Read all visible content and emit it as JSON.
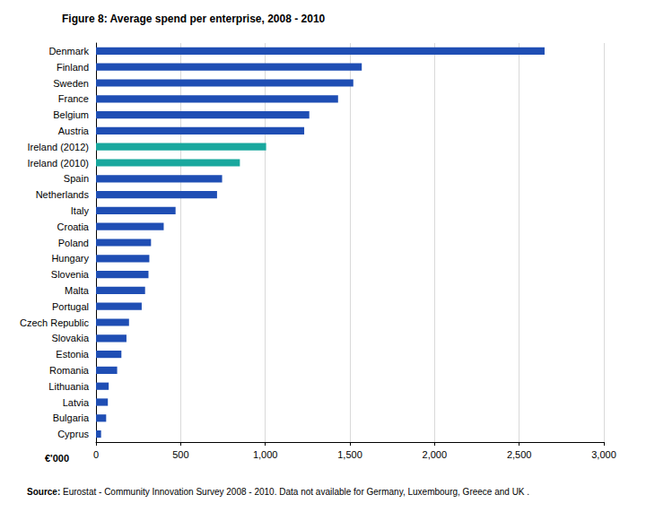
{
  "chart_data": {
    "type": "bar",
    "orientation": "horizontal",
    "title": "Figure 8: Average spend per enterprise, 2008 - 2010",
    "x_label": "€'000",
    "source_label": "Source:",
    "source": "Eurostat - Community Innovation Survey 2008 - 2010. Data not available for Germany, Luxembourg, Greece and UK .",
    "categories": [
      "Denmark",
      "Finland",
      "Sweden",
      "France",
      "Belgium",
      "Austria",
      "Ireland (2012)",
      "Ireland (2010)",
      "Spain",
      "Netherlands",
      "Italy",
      "Croatia",
      "Poland",
      "Hungary",
      "Slovenia",
      "Malta",
      "Portugal",
      "Czech Republic",
      "Slovakia",
      "Estonia",
      "Romania",
      "Lithuania",
      "Latvia",
      "Bulgaria",
      "Cyprus"
    ],
    "values": [
      2650,
      1570,
      1520,
      1430,
      1260,
      1230,
      1005,
      850,
      745,
      715,
      470,
      400,
      325,
      315,
      310,
      290,
      270,
      195,
      180,
      150,
      125,
      75,
      70,
      60,
      30
    ],
    "colors": [
      "#1f4eb4",
      "#1f4eb4",
      "#1f4eb4",
      "#1f4eb4",
      "#1f4eb4",
      "#1f4eb4",
      "#19a89e",
      "#19a89e",
      "#1f4eb4",
      "#1f4eb4",
      "#1f4eb4",
      "#1f4eb4",
      "#1f4eb4",
      "#1f4eb4",
      "#1f4eb4",
      "#1f4eb4",
      "#1f4eb4",
      "#1f4eb4",
      "#1f4eb4",
      "#1f4eb4",
      "#1f4eb4",
      "#1f4eb4",
      "#1f4eb4",
      "#1f4eb4",
      "#1f4eb4"
    ],
    "xlim": [
      0,
      3000
    ],
    "xticks": [
      0,
      500,
      {
        "value": 1000,
        "label": "1,000"
      },
      {
        "value": 1500,
        "label": "1,500"
      },
      {
        "value": 2000,
        "label": "2,000"
      },
      {
        "value": 2500,
        "label": "2,500"
      },
      {
        "value": 3000,
        "label": "3,000"
      }
    ],
    "grid": true
  }
}
